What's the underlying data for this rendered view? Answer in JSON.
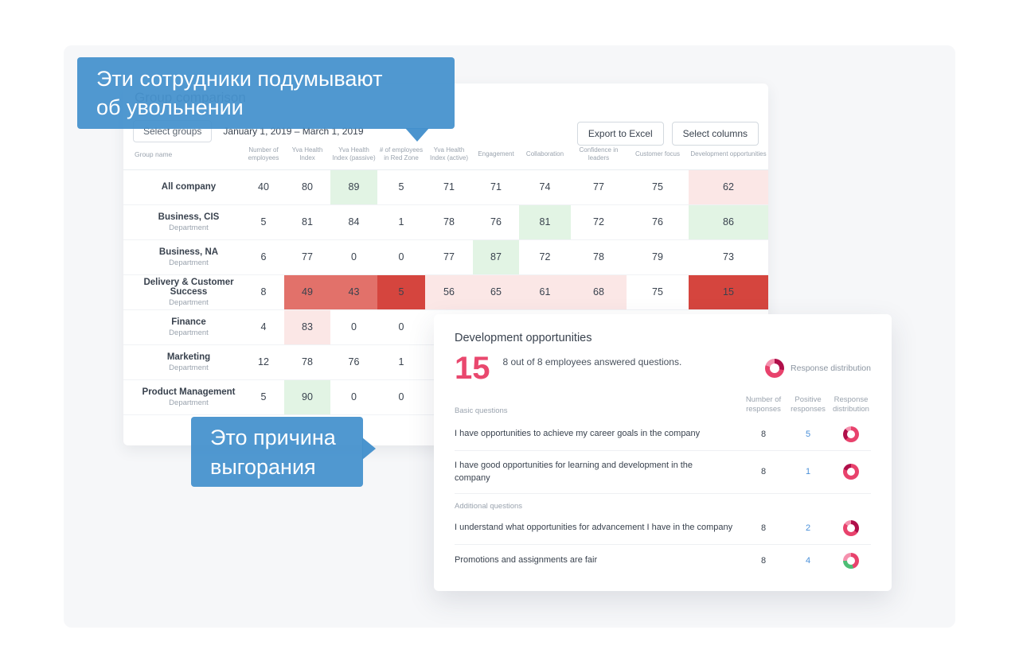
{
  "callouts": {
    "quit": {
      "line1": "Эти сотрудники подумывают",
      "line2": "об увольнении"
    },
    "burnout": {
      "line1": "Это причина",
      "line2": "выгорания"
    }
  },
  "card": {
    "title": "Group comparison",
    "filters": {
      "group": "Select groups",
      "date_range": "January 1, 2019 – March 1, 2019"
    },
    "buttons": {
      "export": "Export to Excel",
      "columns": "Select columns"
    }
  },
  "table": {
    "columns": [
      "Group name",
      "Number of employees",
      "Yva Health Index",
      "Yva Health Index (passive)",
      "# of employees in Red Zone",
      "Yva Health Index (active)",
      "Engagement",
      "Collaboration",
      "Confidence in leaders",
      "Customer focus",
      "Development opportunities"
    ],
    "rows": [
      {
        "name": "All company",
        "sub": "",
        "cells": [
          {
            "v": "40",
            "bg": ""
          },
          {
            "v": "80",
            "bg": ""
          },
          {
            "v": "89",
            "bg": "g"
          },
          {
            "v": "5",
            "bg": ""
          },
          {
            "v": "71",
            "bg": ""
          },
          {
            "v": "71",
            "bg": ""
          },
          {
            "v": "74",
            "bg": ""
          },
          {
            "v": "77",
            "bg": ""
          },
          {
            "v": "75",
            "bg": ""
          },
          {
            "v": "62",
            "bg": "p"
          }
        ]
      },
      {
        "name": "Business, CIS",
        "sub": "Department",
        "cells": [
          {
            "v": "5",
            "bg": ""
          },
          {
            "v": "81",
            "bg": ""
          },
          {
            "v": "84",
            "bg": ""
          },
          {
            "v": "1",
            "bg": ""
          },
          {
            "v": "78",
            "bg": ""
          },
          {
            "v": "76",
            "bg": ""
          },
          {
            "v": "81",
            "bg": "g"
          },
          {
            "v": "72",
            "bg": ""
          },
          {
            "v": "76",
            "bg": ""
          },
          {
            "v": "86",
            "bg": "g"
          }
        ]
      },
      {
        "name": "Business, NA",
        "sub": "Department",
        "cells": [
          {
            "v": "6",
            "bg": ""
          },
          {
            "v": "77",
            "bg": ""
          },
          {
            "v": "0",
            "bg": ""
          },
          {
            "v": "0",
            "bg": ""
          },
          {
            "v": "77",
            "bg": ""
          },
          {
            "v": "87",
            "bg": "g"
          },
          {
            "v": "72",
            "bg": ""
          },
          {
            "v": "78",
            "bg": ""
          },
          {
            "v": "79",
            "bg": ""
          },
          {
            "v": "73",
            "bg": ""
          }
        ]
      },
      {
        "name": "Delivery & Customer Success",
        "sub": "Department",
        "cells": [
          {
            "v": "8",
            "bg": ""
          },
          {
            "v": "49",
            "bg": "r"
          },
          {
            "v": "43",
            "bg": "r"
          },
          {
            "v": "5",
            "bg": "R"
          },
          {
            "v": "56",
            "bg": "p"
          },
          {
            "v": "65",
            "bg": "p"
          },
          {
            "v": "61",
            "bg": "p"
          },
          {
            "v": "68",
            "bg": "p"
          },
          {
            "v": "75",
            "bg": ""
          },
          {
            "v": "15",
            "bg": "R"
          }
        ]
      },
      {
        "name": "Finance",
        "sub": "Department",
        "cells": [
          {
            "v": "4",
            "bg": ""
          },
          {
            "v": "83",
            "bg": "p"
          },
          {
            "v": "0",
            "bg": ""
          },
          {
            "v": "0",
            "bg": ""
          },
          {
            "v": "",
            "bg": ""
          },
          {
            "v": "",
            "bg": ""
          },
          {
            "v": "",
            "bg": ""
          },
          {
            "v": "",
            "bg": ""
          },
          {
            "v": "",
            "bg": ""
          },
          {
            "v": "",
            "bg": ""
          }
        ]
      },
      {
        "name": "Marketing",
        "sub": "Department",
        "cells": [
          {
            "v": "12",
            "bg": ""
          },
          {
            "v": "78",
            "bg": ""
          },
          {
            "v": "76",
            "bg": ""
          },
          {
            "v": "1",
            "bg": ""
          },
          {
            "v": "",
            "bg": ""
          },
          {
            "v": "",
            "bg": ""
          },
          {
            "v": "",
            "bg": ""
          },
          {
            "v": "",
            "bg": ""
          },
          {
            "v": "",
            "bg": ""
          },
          {
            "v": "",
            "bg": ""
          }
        ]
      },
      {
        "name": "Product Management",
        "sub": "Department",
        "cells": [
          {
            "v": "5",
            "bg": ""
          },
          {
            "v": "90",
            "bg": "g"
          },
          {
            "v": "0",
            "bg": ""
          },
          {
            "v": "0",
            "bg": ""
          },
          {
            "v": "",
            "bg": ""
          },
          {
            "v": "",
            "bg": ""
          },
          {
            "v": "",
            "bg": ""
          },
          {
            "v": "",
            "bg": ""
          },
          {
            "v": "",
            "bg": ""
          },
          {
            "v": "",
            "bg": ""
          }
        ]
      }
    ]
  },
  "popup": {
    "title": "Development opportunities",
    "score": "15",
    "subtitle": "8 out of 8 employees answered questions.",
    "legend": "Response distribution",
    "header_donut": [
      {
        "c": "#b00f4a",
        "f": 0.28
      },
      {
        "c": "#e8426c",
        "f": 0.52
      },
      {
        "c": "#f590ad",
        "f": 0.2
      }
    ],
    "headers": {
      "section": "Basic questions",
      "responses": "Number of responses",
      "positive": "Positive responses",
      "distribution": "Response distribution"
    },
    "questions": [
      {
        "text": "I have opportunities to achieve my career goals in the company",
        "responses": "8",
        "positive": "5",
        "donut": [
          {
            "c": "#e8426c",
            "f": 0.62
          },
          {
            "c": "#b00f4a",
            "f": 0.25
          },
          {
            "c": "#f590ad",
            "f": 0.13
          }
        ]
      },
      {
        "text": "I have good opportunities for learning and development in the\ncompany",
        "responses": "8",
        "positive": "1",
        "donut": [
          {
            "c": "#e8426c",
            "f": 0.8
          },
          {
            "c": "#b00f4a",
            "f": 0.2
          }
        ]
      },
      {
        "section": "Additional questions",
        "text": "I understand what opportunities for advancement I have in the company",
        "responses": "8",
        "positive": "2",
        "donut": [
          {
            "c": "#b00f4a",
            "f": 0.35
          },
          {
            "c": "#e8426c",
            "f": 0.5
          },
          {
            "c": "#f590ad",
            "f": 0.15
          }
        ]
      },
      {
        "text": "Promotions and assignments are fair",
        "responses": "8",
        "positive": "4",
        "donut": [
          {
            "c": "#e8426c",
            "f": 0.45
          },
          {
            "c": "#4dbd74",
            "f": 0.3
          },
          {
            "c": "#f590ad",
            "f": 0.25
          }
        ]
      }
    ]
  },
  "colors": {
    "callout_blue": "#4390cc",
    "score_red": "#e9486e",
    "cell_green": "#e2f4e4",
    "cell_pink": "#fbe7e6",
    "cell_red": "#e2716a",
    "cell_dark_red": "#d5453e",
    "positive_blue": "#4a90d9"
  }
}
